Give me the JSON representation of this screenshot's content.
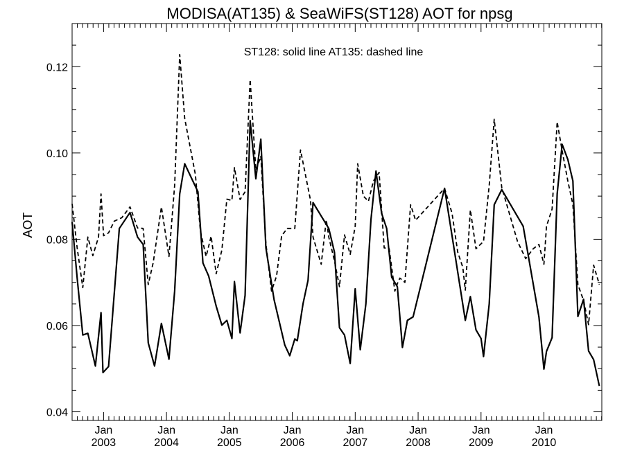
{
  "chart_data": {
    "type": "line",
    "title": "MODISA(AT135) & SeaWiFS(ST128)  AOT for npsg",
    "annotation": "ST128: solid line   AT135: dashed line",
    "ylabel": "AOT",
    "xlabel": "",
    "xlim": [
      2002.5,
      2010.92
    ],
    "ylim": [
      0.038,
      0.13
    ],
    "y_ticks": [
      0.04,
      0.06,
      0.08,
      0.1,
      0.12
    ],
    "y_tick_labels": [
      "0.04",
      "0.06",
      "0.08",
      "0.10",
      "0.12"
    ],
    "x_ticks": [
      2003.0,
      2004.0,
      2005.0,
      2006.0,
      2007.0,
      2008.0,
      2009.0,
      2010.0
    ],
    "x_tick_labels_top": [
      "Jan",
      "Jan",
      "Jan",
      "Jan",
      "Jan",
      "Jan",
      "Jan",
      "Jan"
    ],
    "x_tick_labels_bottom": [
      "2003",
      "2004",
      "2005",
      "2006",
      "2007",
      "2008",
      "2009",
      "2010"
    ],
    "grid": false,
    "series": [
      {
        "name": "ST128",
        "style": "solid",
        "color": "#000000",
        "points": [
          [
            2002.5,
            0.084
          ],
          [
            2002.58,
            0.071
          ],
          [
            2002.67,
            0.0578
          ],
          [
            2002.75,
            0.0582
          ],
          [
            2002.87,
            0.0506
          ],
          [
            2002.96,
            0.063
          ],
          [
            2002.99,
            0.0491
          ],
          [
            2003.08,
            0.0505
          ],
          [
            2003.25,
            0.0825
          ],
          [
            2003.42,
            0.0862
          ],
          [
            2003.54,
            0.0805
          ],
          [
            2003.63,
            0.0788
          ],
          [
            2003.71,
            0.056
          ],
          [
            2003.81,
            0.0506
          ],
          [
            2003.92,
            0.0605
          ],
          [
            2004.04,
            0.0522
          ],
          [
            2004.13,
            0.068
          ],
          [
            2004.21,
            0.0905
          ],
          [
            2004.29,
            0.0975
          ],
          [
            2004.5,
            0.091
          ],
          [
            2004.58,
            0.0745
          ],
          [
            2004.67,
            0.0715
          ],
          [
            2004.79,
            0.0645
          ],
          [
            2004.88,
            0.0601
          ],
          [
            2004.96,
            0.0612
          ],
          [
            2005.04,
            0.057
          ],
          [
            2005.08,
            0.0702
          ],
          [
            2005.17,
            0.0583
          ],
          [
            2005.25,
            0.067
          ],
          [
            2005.33,
            0.1075
          ],
          [
            2005.42,
            0.094
          ],
          [
            2005.5,
            0.1032
          ],
          [
            2005.58,
            0.078
          ],
          [
            2005.71,
            0.066
          ],
          [
            2005.88,
            0.0555
          ],
          [
            2005.96,
            0.053
          ],
          [
            2006.04,
            0.0569
          ],
          [
            2006.08,
            0.0565
          ],
          [
            2006.17,
            0.065
          ],
          [
            2006.25,
            0.0705
          ],
          [
            2006.33,
            0.0885
          ],
          [
            2006.58,
            0.0825
          ],
          [
            2006.67,
            0.077
          ],
          [
            2006.75,
            0.0595
          ],
          [
            2006.83,
            0.0578
          ],
          [
            2006.92,
            0.0512
          ],
          [
            2007.0,
            0.0685
          ],
          [
            2007.08,
            0.0544
          ],
          [
            2007.17,
            0.065
          ],
          [
            2007.25,
            0.0845
          ],
          [
            2007.33,
            0.0958
          ],
          [
            2007.42,
            0.086
          ],
          [
            2007.5,
            0.0825
          ],
          [
            2007.58,
            0.0712
          ],
          [
            2007.67,
            0.069
          ],
          [
            2007.75,
            0.0549
          ],
          [
            2007.83,
            0.0612
          ],
          [
            2007.92,
            0.062
          ],
          [
            2008.42,
            0.0918
          ],
          [
            2008.58,
            0.077
          ],
          [
            2008.75,
            0.0612
          ],
          [
            2008.83,
            0.0667
          ],
          [
            2008.92,
            0.059
          ],
          [
            2009.0,
            0.057
          ],
          [
            2009.04,
            0.0528
          ],
          [
            2009.13,
            0.065
          ],
          [
            2009.21,
            0.088
          ],
          [
            2009.33,
            0.0915
          ],
          [
            2009.67,
            0.083
          ],
          [
            2009.92,
            0.062
          ],
          [
            2010.0,
            0.0499
          ],
          [
            2010.04,
            0.054
          ],
          [
            2010.13,
            0.0572
          ],
          [
            2010.21,
            0.0905
          ],
          [
            2010.29,
            0.102
          ],
          [
            2010.38,
            0.0985
          ],
          [
            2010.46,
            0.0935
          ],
          [
            2010.54,
            0.0621
          ],
          [
            2010.63,
            0.0661
          ],
          [
            2010.71,
            0.0541
          ],
          [
            2010.79,
            0.0521
          ],
          [
            2010.88,
            0.046
          ]
        ]
      },
      {
        "name": "AT135",
        "style": "dashed",
        "color": "#000000",
        "points": [
          [
            2002.5,
            0.0882
          ],
          [
            2002.58,
            0.078
          ],
          [
            2002.67,
            0.0688
          ],
          [
            2002.75,
            0.0805
          ],
          [
            2002.83,
            0.0762
          ],
          [
            2002.92,
            0.0805
          ],
          [
            2002.96,
            0.0905
          ],
          [
            2003.0,
            0.0808
          ],
          [
            2003.08,
            0.0815
          ],
          [
            2003.17,
            0.0842
          ],
          [
            2003.29,
            0.085
          ],
          [
            2003.42,
            0.0875
          ],
          [
            2003.54,
            0.0826
          ],
          [
            2003.63,
            0.0825
          ],
          [
            2003.71,
            0.0695
          ],
          [
            2003.79,
            0.0746
          ],
          [
            2003.92,
            0.0875
          ],
          [
            2004.04,
            0.076
          ],
          [
            2004.13,
            0.0925
          ],
          [
            2004.21,
            0.1228
          ],
          [
            2004.29,
            0.108
          ],
          [
            2004.46,
            0.095
          ],
          [
            2004.54,
            0.0818
          ],
          [
            2004.63,
            0.076
          ],
          [
            2004.71,
            0.0807
          ],
          [
            2004.79,
            0.072
          ],
          [
            2004.88,
            0.0775
          ],
          [
            2004.96,
            0.0893
          ],
          [
            2005.04,
            0.089
          ],
          [
            2005.08,
            0.0966
          ],
          [
            2005.17,
            0.0892
          ],
          [
            2005.25,
            0.091
          ],
          [
            2005.33,
            0.117
          ],
          [
            2005.42,
            0.096
          ],
          [
            2005.5,
            0.0992
          ],
          [
            2005.58,
            0.079
          ],
          [
            2005.67,
            0.068
          ],
          [
            2005.75,
            0.0715
          ],
          [
            2005.83,
            0.0808
          ],
          [
            2005.92,
            0.0825
          ],
          [
            2006.04,
            0.0825
          ],
          [
            2006.13,
            0.1007
          ],
          [
            2006.29,
            0.089
          ],
          [
            2006.33,
            0.0805
          ],
          [
            2006.46,
            0.0742
          ],
          [
            2006.54,
            0.0845
          ],
          [
            2006.58,
            0.0805
          ],
          [
            2006.67,
            0.075
          ],
          [
            2006.75,
            0.069
          ],
          [
            2006.83,
            0.081
          ],
          [
            2006.92,
            0.0765
          ],
          [
            2007.0,
            0.083
          ],
          [
            2007.04,
            0.0975
          ],
          [
            2007.13,
            0.09
          ],
          [
            2007.21,
            0.0888
          ],
          [
            2007.29,
            0.0935
          ],
          [
            2007.38,
            0.0955
          ],
          [
            2007.46,
            0.078
          ],
          [
            2007.54,
            0.0778
          ],
          [
            2007.63,
            0.068
          ],
          [
            2007.67,
            0.0697
          ],
          [
            2007.71,
            0.071
          ],
          [
            2007.79,
            0.07
          ],
          [
            2007.88,
            0.088
          ],
          [
            2007.96,
            0.0844
          ],
          [
            2008.42,
            0.0918
          ],
          [
            2008.54,
            0.086
          ],
          [
            2008.63,
            0.077
          ],
          [
            2008.71,
            0.0735
          ],
          [
            2008.75,
            0.0682
          ],
          [
            2008.83,
            0.0868
          ],
          [
            2008.92,
            0.0778
          ],
          [
            2009.04,
            0.0795
          ],
          [
            2009.13,
            0.0925
          ],
          [
            2009.21,
            0.1078
          ],
          [
            2009.33,
            0.092
          ],
          [
            2009.58,
            0.0795
          ],
          [
            2009.71,
            0.0755
          ],
          [
            2009.83,
            0.0778
          ],
          [
            2009.92,
            0.0788
          ],
          [
            2010.0,
            0.0742
          ],
          [
            2010.04,
            0.083
          ],
          [
            2010.13,
            0.087
          ],
          [
            2010.21,
            0.1072
          ],
          [
            2010.29,
            0.1005
          ],
          [
            2010.38,
            0.0935
          ],
          [
            2010.46,
            0.088
          ],
          [
            2010.54,
            0.0695
          ],
          [
            2010.63,
            0.0658
          ],
          [
            2010.71,
            0.0602
          ],
          [
            2010.79,
            0.074
          ],
          [
            2010.88,
            0.0695
          ]
        ]
      }
    ]
  }
}
